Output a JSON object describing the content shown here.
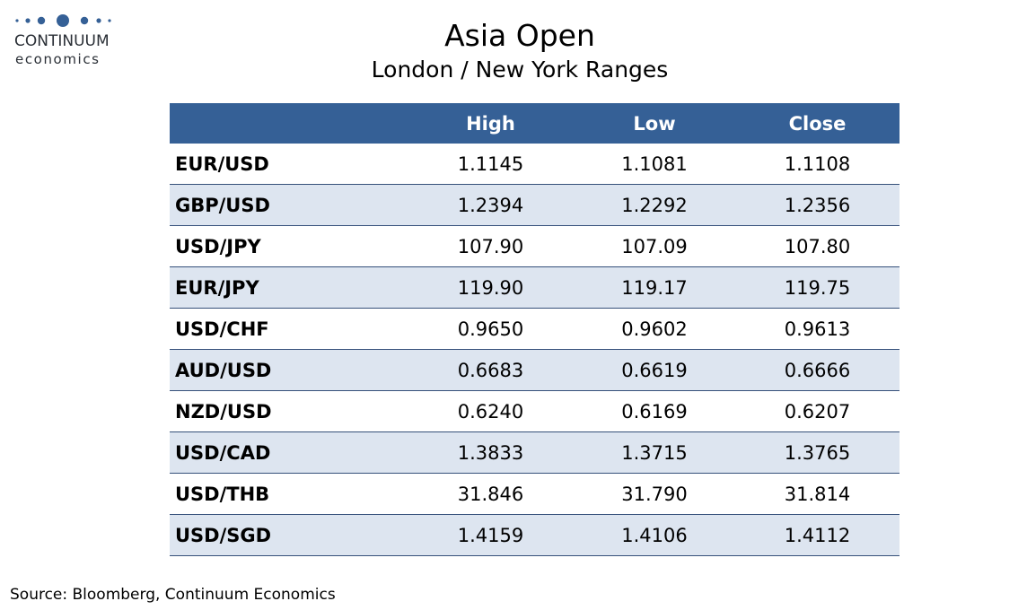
{
  "logo": {
    "name": "CONTINUUM",
    "sub": "economics",
    "color": "#356096"
  },
  "header": {
    "title": "Asia Open",
    "subtitle": "London / New York Ranges"
  },
  "table": {
    "columns": [
      "",
      "High",
      "Low",
      "Close"
    ],
    "rows": [
      {
        "pair": "EUR/USD",
        "high": "1.1145",
        "low": "1.1081",
        "close": "1.1108"
      },
      {
        "pair": "GBP/USD",
        "high": "1.2394",
        "low": "1.2292",
        "close": "1.2356"
      },
      {
        "pair": "USD/JPY",
        "high": "107.90",
        "low": "107.09",
        "close": "107.80"
      },
      {
        "pair": "EUR/JPY",
        "high": "119.90",
        "low": "119.17",
        "close": "119.75"
      },
      {
        "pair": "USD/CHF",
        "high": "0.9650",
        "low": "0.9602",
        "close": "0.9613"
      },
      {
        "pair": "AUD/USD",
        "high": "0.6683",
        "low": "0.6619",
        "close": "0.6666"
      },
      {
        "pair": "NZD/USD",
        "high": "0.6240",
        "low": "0.6169",
        "close": "0.6207"
      },
      {
        "pair": "USD/CAD",
        "high": "1.3833",
        "low": "1.3715",
        "close": "1.3765"
      },
      {
        "pair": "USD/THB",
        "high": "31.846",
        "low": "31.790",
        "close": "31.814"
      },
      {
        "pair": "USD/SGD",
        "high": "1.4159",
        "low": "1.4106",
        "close": "1.4112"
      }
    ],
    "header_color": "#356096",
    "alt_row_color": "#dde5f0"
  },
  "footer": {
    "source": "Source: Bloomberg, Continuum Economics"
  }
}
